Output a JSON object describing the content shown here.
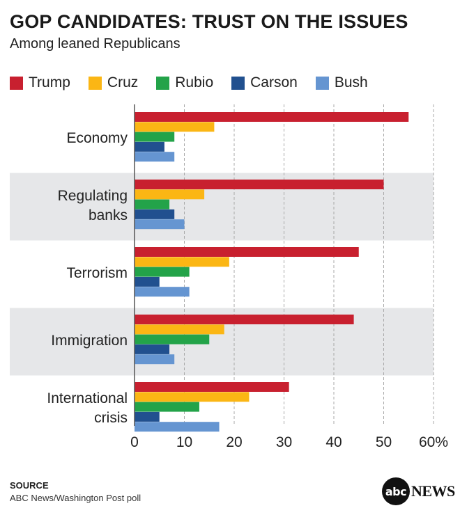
{
  "header": {
    "title": "GOP CANDIDATES: TRUST ON THE ISSUES",
    "subtitle": "Among leaned Republicans"
  },
  "footer": {
    "source_heading": "SOURCE",
    "source_text": "ABC News/Washington Post poll",
    "logo_mark": "abc",
    "logo_word": "NEWS"
  },
  "chart_data": {
    "type": "bar",
    "orientation": "horizontal",
    "title": "GOP CANDIDATES: TRUST ON THE ISSUES",
    "subtitle": "Among leaned Republicans",
    "categories": [
      [
        "Economy"
      ],
      [
        "Regulating",
        "banks"
      ],
      [
        "Terrorism"
      ],
      [
        "Immigration"
      ],
      [
        "International",
        "crisis"
      ]
    ],
    "series": [
      {
        "name": "Trump",
        "color": "#c8202f",
        "values": [
          55,
          50,
          45,
          44,
          31
        ]
      },
      {
        "name": "Cruz",
        "color": "#fbb614",
        "values": [
          16,
          14,
          19,
          18,
          23
        ]
      },
      {
        "name": "Rubio",
        "color": "#23a349",
        "values": [
          8,
          7,
          11,
          15,
          13
        ]
      },
      {
        "name": "Carson",
        "color": "#21508f",
        "values": [
          6,
          8,
          5,
          7,
          5
        ]
      },
      {
        "name": "Bush",
        "color": "#6595d1",
        "values": [
          8,
          10,
          11,
          8,
          17
        ]
      }
    ],
    "xlim": [
      0,
      60
    ],
    "ticks": [
      0,
      10,
      20,
      30,
      40,
      50,
      60
    ],
    "tick_labels": [
      "0",
      "10",
      "20",
      "30",
      "40",
      "50",
      "60%"
    ],
    "grid": true,
    "alternating_band_color": "#e6e7e9",
    "legend_position": "top-left"
  }
}
